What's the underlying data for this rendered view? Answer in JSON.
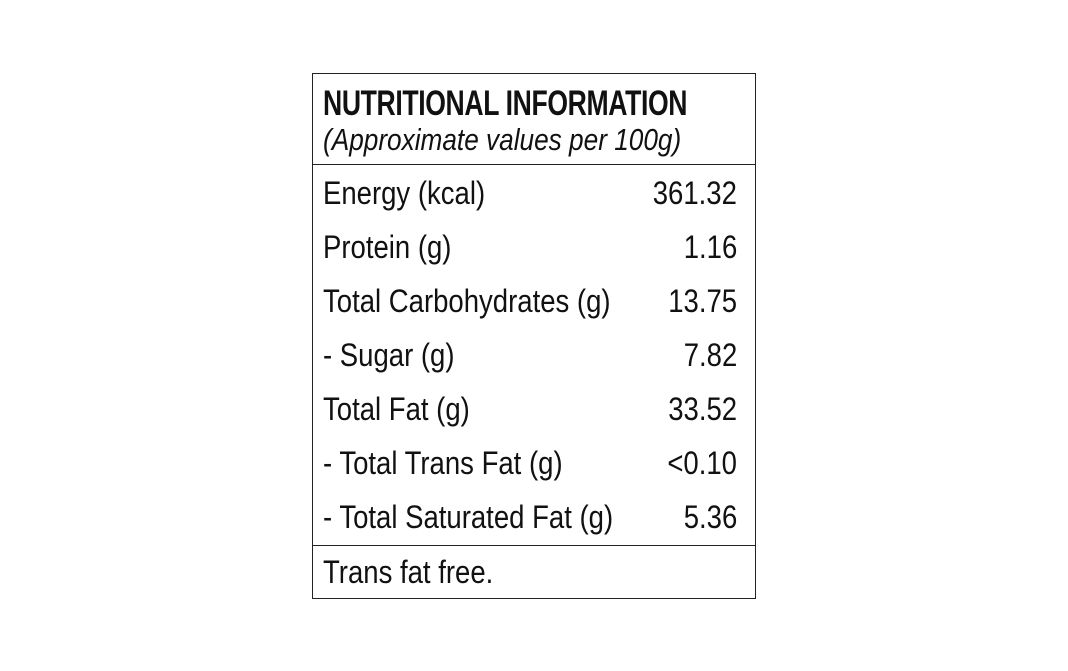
{
  "header": {
    "title": "NUTRITIONAL INFORMATION",
    "subtitle": "(Approximate values per 100g)"
  },
  "table": {
    "rows": [
      [
        "Energy (kcal)",
        "361.32"
      ],
      [
        "Protein (g)",
        "1.16"
      ],
      [
        "Total Carbohydrates (g)",
        "13.75"
      ],
      [
        "- Sugar (g)",
        "7.82"
      ],
      [
        "Total Fat (g)",
        "33.52"
      ],
      [
        "- Total Trans Fat (g)",
        "<0.10"
      ],
      [
        "- Total Saturated Fat (g)",
        "5.36"
      ]
    ]
  },
  "footer": {
    "note": "Trans fat free."
  }
}
